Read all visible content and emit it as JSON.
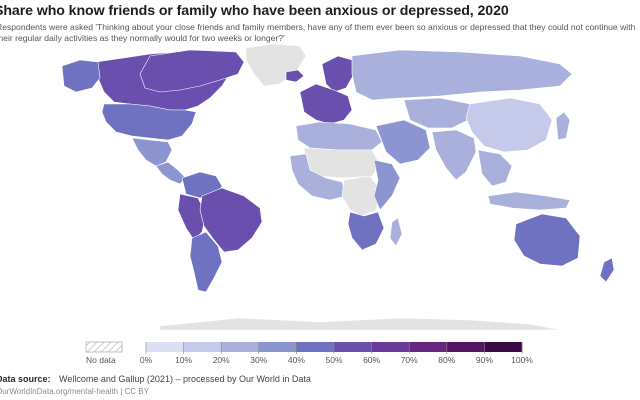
{
  "header": {
    "title": "Share who know friends or family who have been anxious or depressed, 2020",
    "subtitle": "Respondents were asked 'Thinking about your close friends and family members, have any of them ever been so anxious or depressed that they could not continue with their regular daily activities as they normally would for two weeks or longer?'"
  },
  "legend": {
    "no_data_label": "No data",
    "ticks": [
      "0%",
      "10%",
      "20%",
      "30%",
      "40%",
      "50%",
      "60%",
      "70%",
      "80%",
      "90%",
      "100%"
    ],
    "color_stops": [
      "#f3f3fb",
      "#dcdff2",
      "#c5c9ea",
      "#aab0dc",
      "#8c95cf",
      "#6f72c0",
      "#6a4fae",
      "#6b3a99",
      "#6a2481",
      "#561664",
      "#3b0a46"
    ]
  },
  "map": {
    "no_data_color": "#e3e3e3",
    "regions": [
      {
        "name": "North America",
        "share": 0.55
      },
      {
        "name": "Canada",
        "share": 0.6
      },
      {
        "name": "United States",
        "share": 0.45
      },
      {
        "name": "Alaska",
        "share": 0.45
      },
      {
        "name": "Greenland",
        "share": null
      },
      {
        "name": "Mexico",
        "share": 0.4
      },
      {
        "name": "Central America",
        "share": 0.35
      },
      {
        "name": "Colombia and Venezuela",
        "share": 0.45
      },
      {
        "name": "Peru",
        "share": 0.6
      },
      {
        "name": "Brazil",
        "share": 0.6
      },
      {
        "name": "Southern Cone",
        "share": 0.45
      },
      {
        "name": "Iceland",
        "share": 0.55
      },
      {
        "name": "Scandinavia",
        "share": 0.55
      },
      {
        "name": "Western Europe",
        "share": 0.55
      },
      {
        "name": "Russia",
        "share": 0.3
      },
      {
        "name": "North Africa",
        "share": 0.25
      },
      {
        "name": "Sahara",
        "share": null
      },
      {
        "name": "West Africa",
        "share": 0.3
      },
      {
        "name": "Central Africa",
        "share": null
      },
      {
        "name": "East Africa",
        "share": 0.35
      },
      {
        "name": "Southern Africa",
        "share": 0.45
      },
      {
        "name": "Madagascar",
        "share": 0.3
      },
      {
        "name": "Middle East",
        "share": 0.35
      },
      {
        "name": "Central Asia",
        "share": 0.3
      },
      {
        "name": "China",
        "share": 0.2
      },
      {
        "name": "India",
        "share": 0.25
      },
      {
        "name": "Southeast Asia",
        "share": 0.3
      },
      {
        "name": "Japan",
        "share": 0.25
      },
      {
        "name": "Indonesia",
        "share": 0.3
      },
      {
        "name": "Australia",
        "share": 0.5
      },
      {
        "name": "New Zealand",
        "share": 0.45
      },
      {
        "name": "Antarctica",
        "share": null
      }
    ]
  },
  "footer": {
    "source_label": "Data source:",
    "source_text": "Wellcome and Gallup (2021) – processed by Our World in Data",
    "link_text": "OurWorldInData.org/mental-health | CC BY"
  }
}
